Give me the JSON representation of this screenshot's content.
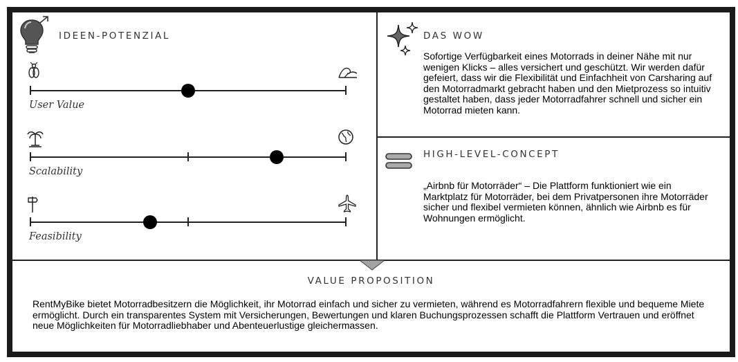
{
  "ideen": {
    "title": "IDEEN-POTENZIAL",
    "sliders": [
      {
        "label": "User Value",
        "left_icon": "bug-icon",
        "right_icon": "wave-icon",
        "value": 0.5,
        "mid_tick": false
      },
      {
        "label": "Scalability",
        "left_icon": "palm-tree-icon",
        "right_icon": "globe-icon",
        "value": 0.78,
        "mid_tick": true
      },
      {
        "label": "Feasibility",
        "left_icon": "signpost-icon",
        "right_icon": "airplane-icon",
        "value": 0.38,
        "mid_tick": true
      }
    ]
  },
  "wow": {
    "title": "DAS WOW",
    "text": "Sofortige Verfügbarkeit eines Motorrads in deiner Nähe mit nur wenigen Klicks – alles versichert und geschützt. Wir werden dafür gefeiert, dass wir die Flexibilität und Einfachheit von Carsharing auf den Motorradmarkt gebracht haben und den Mietprozess so intuitiv gestaltet haben, dass jeder Motorradfahrer schnell und sicher ein Motorrad mieten kann."
  },
  "concept": {
    "title": "HIGH-LEVEL-CONCEPT",
    "text": "„Airbnb für Motorräder“ – Die Plattform funktioniert wie ein Marktplatz für Motorräder, bei dem Privatpersonen ihre Motorräder sicher und flexibel vermieten können, ähnlich wie Airbnb es für Wohnungen ermöglicht."
  },
  "value": {
    "title": "VALUE PROPOSITION",
    "text": "RentMyBike bietet Motorradbesitzern die Möglichkeit, ihr Motorrad einfach und sicher zu vermieten, während es Motorradfahrern flexible und bequeme Miete ermöglicht. Durch ein transparentes System mit Versicherungen, Bewertungen und klaren Buchungsprozessen schafft die Plattform Vertrauen und eröffnet neue Möglichkeiten für Motorradliebhaber und Abenteuerlustige gleichermassen."
  },
  "colors": {
    "frame": "#1b1b1b",
    "tab": "#a3a3a3",
    "knob": "#000000"
  }
}
